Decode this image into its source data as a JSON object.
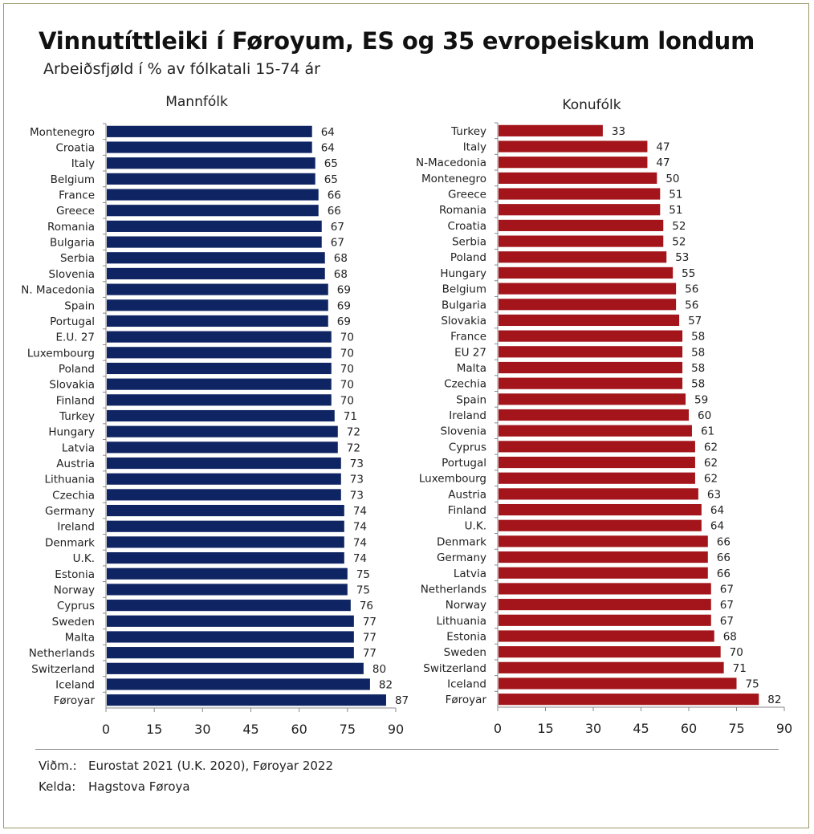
{
  "header": {
    "title": "Vinnutíttleiki í Føroyum, ES og 35 evropeiskum londum",
    "subtitle": "Arbeiðsfjøld í % av fólkatali 15-74 ár"
  },
  "colors": {
    "men": "#0f2563",
    "women": "#a3151a"
  },
  "chart_data": [
    {
      "type": "bar",
      "orientation": "horizontal",
      "title": "Mannfólk",
      "xlim": [
        0,
        90
      ],
      "xticks": [
        0,
        15,
        30,
        45,
        60,
        75,
        90
      ],
      "categories": [
        "Montenegro",
        "Croatia",
        "Italy",
        "Belgium",
        "France",
        "Greece",
        "Romania",
        "Bulgaria",
        "Serbia",
        "Slovenia",
        "N. Macedonia",
        "Spain",
        "Portugal",
        "E.U. 27",
        "Luxembourg",
        "Poland",
        "Slovakia",
        "Finland",
        "Turkey",
        "Hungary",
        "Latvia",
        "Austria",
        "Lithuania",
        "Czechia",
        "Germany",
        "Ireland",
        "Denmark",
        "U.K.",
        "Estonia",
        "Norway",
        "Cyprus",
        "Sweden",
        "Malta",
        "Netherlands",
        "Switzerland",
        "Iceland",
        "Føroyar"
      ],
      "values": [
        64,
        64,
        65,
        65,
        66,
        66,
        67,
        67,
        68,
        68,
        69,
        69,
        69,
        70,
        70,
        70,
        70,
        70,
        71,
        72,
        72,
        73,
        73,
        73,
        74,
        74,
        74,
        74,
        75,
        75,
        76,
        77,
        77,
        77,
        80,
        82,
        87
      ],
      "color": "#0f2563"
    },
    {
      "type": "bar",
      "orientation": "horizontal",
      "title": "Konufólk",
      "xlim": [
        0,
        90
      ],
      "xticks": [
        0,
        15,
        30,
        45,
        60,
        75,
        90
      ],
      "categories": [
        "Turkey",
        "Italy",
        "N-Macedonia",
        "Montenegro",
        "Greece",
        "Romania",
        "Croatia",
        "Serbia",
        "Poland",
        "Hungary",
        "Belgium",
        "Bulgaria",
        "Slovakia",
        "France",
        "EU 27",
        "Malta",
        "Czechia",
        "Spain",
        "Ireland",
        "Slovenia",
        "Cyprus",
        "Portugal",
        "Luxembourg",
        "Austria",
        "Finland",
        "U.K.",
        "Denmark",
        "Germany",
        "Latvia",
        "Netherlands",
        "Norway",
        "Lithuania",
        "Estonia",
        "Sweden",
        "Switzerland",
        "Iceland",
        "Føroyar"
      ],
      "values": [
        33,
        47,
        47,
        50,
        51,
        51,
        52,
        52,
        53,
        55,
        56,
        56,
        57,
        58,
        58,
        58,
        58,
        59,
        60,
        61,
        62,
        62,
        62,
        63,
        64,
        64,
        66,
        66,
        66,
        67,
        67,
        67,
        68,
        70,
        71,
        75,
        82
      ],
      "color": "#a3151a"
    }
  ],
  "footer": {
    "note_label": "Viðm.:",
    "note_text": "Eurostat 2021 (U.K. 2020), Føroyar 2022",
    "source_label": "Kelda:",
    "source_text": "Hagstova Føroya"
  }
}
